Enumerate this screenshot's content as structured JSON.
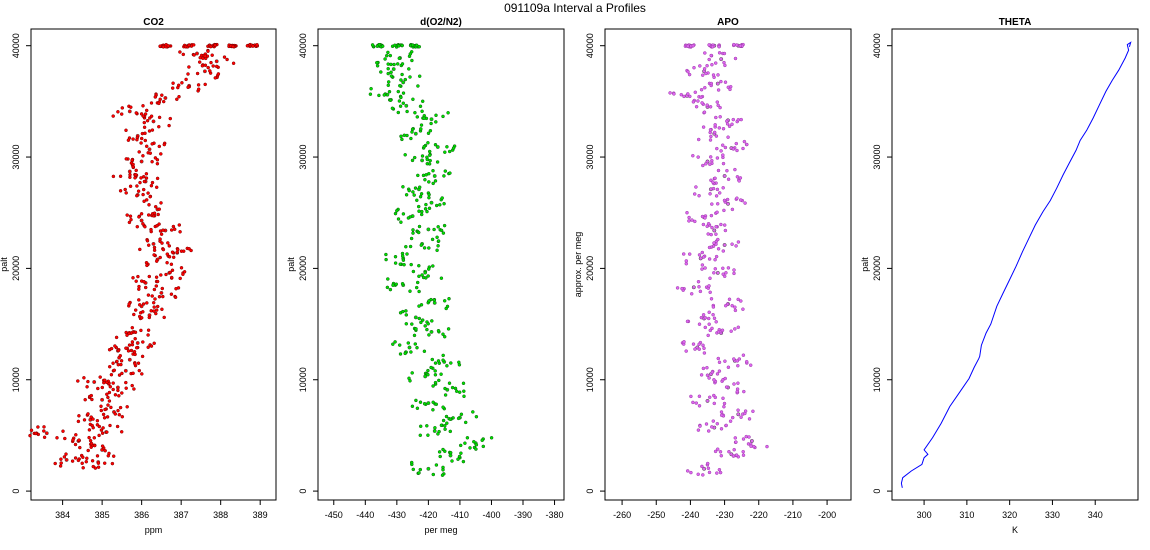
{
  "figure": {
    "title": "091109a   Interval a Profiles"
  },
  "chart_data": [
    {
      "type": "scatter",
      "title": "CO2",
      "xlabel": "ppm",
      "ylabel": "palt",
      "xlim": [
        383.2,
        389.4
      ],
      "ylim": [
        -800,
        41500
      ],
      "xticks": [
        384,
        385,
        386,
        387,
        388,
        389
      ],
      "yticks": [
        0,
        10000,
        20000,
        30000,
        40000
      ],
      "color": "#ff0000",
      "series": [
        {
          "name": "",
          "points": [
            [
              383.6,
              5200
            ],
            [
              384.1,
              2800
            ],
            [
              384.4,
              4500
            ],
            [
              384.7,
              6400
            ],
            [
              384.9,
              2600
            ],
            [
              385.0,
              3700
            ],
            [
              385.1,
              5300
            ],
            [
              385.3,
              7100
            ],
            [
              385.0,
              8200
            ],
            [
              385.4,
              9300
            ],
            [
              384.8,
              9800
            ],
            [
              385.6,
              10800
            ],
            [
              385.7,
              11800
            ],
            [
              385.4,
              12600
            ],
            [
              385.9,
              13300
            ],
            [
              385.8,
              14300
            ],
            [
              386.2,
              15800
            ],
            [
              386.0,
              16600
            ],
            [
              386.5,
              17800
            ],
            [
              386.1,
              18700
            ],
            [
              386.7,
              19600
            ],
            [
              386.4,
              20800
            ],
            [
              386.9,
              21400
            ],
            [
              386.3,
              22200
            ],
            [
              386.6,
              23400
            ],
            [
              386.0,
              24300
            ],
            [
              386.4,
              25300
            ],
            [
              385.9,
              26600
            ],
            [
              386.1,
              27800
            ],
            [
              385.7,
              28700
            ],
            [
              386.0,
              29600
            ],
            [
              386.2,
              30700
            ],
            [
              385.9,
              31900
            ],
            [
              386.3,
              33200
            ],
            [
              385.7,
              34100
            ],
            [
              386.6,
              35300
            ],
            [
              387.2,
              36400
            ],
            [
              387.6,
              37700
            ],
            [
              387.9,
              38600
            ],
            [
              387.4,
              39300
            ],
            [
              386.6,
              40000
            ],
            [
              387.2,
              40000
            ],
            [
              387.8,
              40000
            ],
            [
              388.3,
              40000
            ],
            [
              388.8,
              40000
            ]
          ]
        }
      ]
    },
    {
      "type": "scatter",
      "title": "d(O2/N2)",
      "xlabel": "per meg",
      "ylabel": "palt",
      "xlim": [
        -455,
        -377
      ],
      "ylim": [
        -800,
        41500
      ],
      "xticks": [
        -450,
        -440,
        -430,
        -420,
        -410,
        -400,
        -390,
        -380
      ],
      "yticks": [
        0,
        10000,
        20000,
        30000,
        40000
      ],
      "color": "#00e000",
      "series": [
        {
          "name": "",
          "points": [
            [
              -420,
              2000
            ],
            [
              -413,
              3200
            ],
            [
              -405,
              4300
            ],
            [
              -418,
              5400
            ],
            [
              -410,
              6600
            ],
            [
              -420,
              7900
            ],
            [
              -414,
              9100
            ],
            [
              -421,
              10300
            ],
            [
              -415,
              11600
            ],
            [
              -426,
              12900
            ],
            [
              -419,
              14300
            ],
            [
              -424,
              15600
            ],
            [
              -418,
              16900
            ],
            [
              -428,
              18500
            ],
            [
              -421,
              19700
            ],
            [
              -428,
              20900
            ],
            [
              -422,
              22200
            ],
            [
              -420,
              23500
            ],
            [
              -425,
              24700
            ],
            [
              -419,
              25900
            ],
            [
              -423,
              27100
            ],
            [
              -418,
              28300
            ],
            [
              -422,
              29700
            ],
            [
              -417,
              30900
            ],
            [
              -424,
              32100
            ],
            [
              -419,
              33400
            ],
            [
              -427,
              34600
            ],
            [
              -433,
              35600
            ],
            [
              -428,
              36700
            ],
            [
              -431,
              37900
            ],
            [
              -429,
              38900
            ],
            [
              -436,
              40000
            ],
            [
              -430,
              40000
            ],
            [
              -424,
              40000
            ]
          ]
        }
      ]
    },
    {
      "type": "scatter",
      "title": "APO",
      "xlabel": "",
      "ylabel": "approx. per meg",
      "xlim": [
        -265,
        -193
      ],
      "ylim": [
        -800,
        41500
      ],
      "xticks": [
        -260,
        -250,
        -240,
        -230,
        -220,
        -210,
        -200
      ],
      "yticks": [
        0,
        10000,
        20000,
        30000,
        40000
      ],
      "color": "#dd66ee",
      "series": [
        {
          "name": "",
          "points": [
            [
              -236,
              2000
            ],
            [
              -228,
              3300
            ],
            [
              -222,
              4500
            ],
            [
              -233,
              5700
            ],
            [
              -226,
              6900
            ],
            [
              -235,
              8100
            ],
            [
              -229,
              9300
            ],
            [
              -234,
              10500
            ],
            [
              -227,
              11700
            ],
            [
              -238,
              12900
            ],
            [
              -231,
              14200
            ],
            [
              -236,
              15500
            ],
            [
              -229,
              16800
            ],
            [
              -239,
              18300
            ],
            [
              -232,
              19600
            ],
            [
              -237,
              20900
            ],
            [
              -230,
              22100
            ],
            [
              -233,
              23400
            ],
            [
              -236,
              24600
            ],
            [
              -229,
              25800
            ],
            [
              -234,
              27100
            ],
            [
              -230,
              28300
            ],
            [
              -235,
              29600
            ],
            [
              -228,
              30800
            ],
            [
              -233,
              32100
            ],
            [
              -229,
              33300
            ],
            [
              -235,
              34500
            ],
            [
              -241,
              35500
            ],
            [
              -232,
              36600
            ],
            [
              -236,
              37700
            ],
            [
              -231,
              38800
            ],
            [
              -240,
              40000
            ],
            [
              -233,
              40000
            ],
            [
              -226,
              40000
            ]
          ]
        }
      ]
    },
    {
      "type": "line",
      "title": "THETA",
      "xlabel": "K",
      "ylabel": "palt",
      "xlim": [
        292.5,
        350
      ],
      "ylim": [
        -800,
        41500
      ],
      "xticks": [
        300,
        310,
        320,
        330,
        340
      ],
      "yticks": [
        0,
        10000,
        20000,
        30000,
        40000
      ],
      "color": "#0000ff",
      "series": [
        {
          "name": "",
          "points": [
            [
              294.9,
              300
            ],
            [
              294.7,
              700
            ],
            [
              295.0,
              1200
            ],
            [
              297.0,
              1800
            ],
            [
              299.5,
              2400
            ],
            [
              300.0,
              3000
            ],
            [
              300.9,
              3300
            ],
            [
              300.0,
              3700
            ],
            [
              302.0,
              4800
            ],
            [
              304.0,
              6100
            ],
            [
              306.0,
              7600
            ],
            [
              308.0,
              8700
            ],
            [
              310.5,
              10100
            ],
            [
              311.7,
              11100
            ],
            [
              312.8,
              11900
            ],
            [
              313.0,
              12100
            ],
            [
              313.4,
              13100
            ],
            [
              314.5,
              14200
            ],
            [
              315.6,
              15000
            ],
            [
              317.0,
              16600
            ],
            [
              318.5,
              17800
            ],
            [
              320.0,
              19000
            ],
            [
              321.5,
              20200
            ],
            [
              323.0,
              21500
            ],
            [
              324.5,
              22700
            ],
            [
              326.0,
              23900
            ],
            [
              327.8,
              25100
            ],
            [
              329.5,
              26100
            ],
            [
              331.0,
              27200
            ],
            [
              332.5,
              28400
            ],
            [
              334.0,
              29500
            ],
            [
              335.5,
              30600
            ],
            [
              336.5,
              31500
            ],
            [
              338.0,
              32400
            ],
            [
              339.5,
              33500
            ],
            [
              341.0,
              34700
            ],
            [
              342.5,
              35900
            ],
            [
              344.0,
              36900
            ],
            [
              345.5,
              37800
            ],
            [
              347.0,
              38900
            ],
            [
              347.8,
              39600
            ],
            [
              347.5,
              40100
            ],
            [
              348.3,
              40300
            ],
            [
              348.0,
              39900
            ]
          ]
        }
      ]
    }
  ]
}
